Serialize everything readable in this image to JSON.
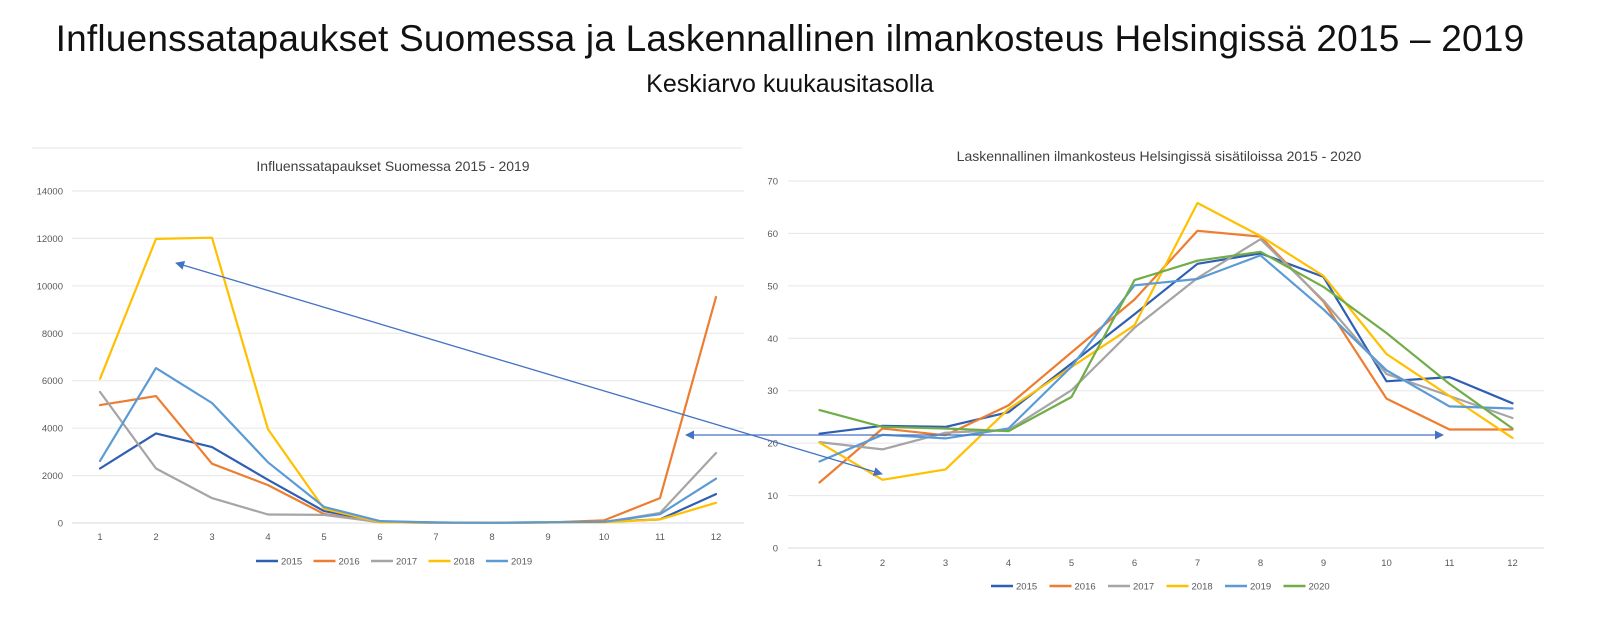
{
  "title": "Influenssatapaukset Suomessa ja Laskennallinen ilmankosteus Helsingissä 2015 – 2019",
  "subtitle": "Keskiarvo kuukausitasolla",
  "arrow_color": "#4472c4",
  "chart_data": [
    {
      "type": "line",
      "title": "Influenssatapaukset Suomessa 2015 - 2019",
      "categories": [
        "1",
        "2",
        "3",
        "4",
        "5",
        "6",
        "7",
        "8",
        "9",
        "10",
        "11",
        "12"
      ],
      "ylim": [
        0,
        14000
      ],
      "yticks": [
        "0",
        "2000",
        "4000",
        "6000",
        "8000",
        "10000",
        "12000",
        "14000"
      ],
      "grid": true,
      "legend_position": "bottom",
      "series": [
        {
          "name": "2015",
          "color": "#2f5fb3",
          "values": [
            2300,
            3780,
            3200,
            1820,
            500,
            60,
            20,
            10,
            30,
            50,
            150,
            1220
          ]
        },
        {
          "name": "2016",
          "color": "#ed7d31",
          "values": [
            4970,
            5350,
            2500,
            1600,
            380,
            30,
            10,
            10,
            20,
            110,
            1050,
            9530
          ]
        },
        {
          "name": "2017",
          "color": "#a5a5a5",
          "values": [
            5530,
            2300,
            1050,
            360,
            340,
            40,
            10,
            10,
            30,
            30,
            420,
            2950
          ]
        },
        {
          "name": "2018",
          "color": "#ffc000",
          "values": [
            6080,
            11980,
            12030,
            3950,
            600,
            40,
            10,
            10,
            20,
            30,
            150,
            850
          ]
        },
        {
          "name": "2019",
          "color": "#5b9bd5",
          "values": [
            2620,
            6530,
            5060,
            2560,
            680,
            80,
            20,
            10,
            30,
            50,
            370,
            1870
          ]
        }
      ]
    },
    {
      "type": "line",
      "title": "Laskennallinen ilmankosteus Helsingissä sisätiloissa 2015 - 2020",
      "categories": [
        "1",
        "2",
        "3",
        "4",
        "5",
        "6",
        "7",
        "8",
        "9",
        "10",
        "11",
        "12"
      ],
      "ylim": [
        0,
        70
      ],
      "yticks": [
        "0",
        "10",
        "20",
        "30",
        "40",
        "50",
        "60",
        "70"
      ],
      "grid": true,
      "legend_position": "bottom",
      "series": [
        {
          "name": "2015",
          "color": "#2f5fb3",
          "values": [
            21.8,
            23.3,
            23.1,
            25.9,
            35.2,
            44.6,
            54.2,
            56.2,
            51.7,
            31.8,
            32.6,
            27.6
          ]
        },
        {
          "name": "2016",
          "color": "#ed7d31",
          "values": [
            12.5,
            22.8,
            21.5,
            27.2,
            37.3,
            47.4,
            60.5,
            59.4,
            47.0,
            28.5,
            22.6,
            22.6
          ]
        },
        {
          "name": "2017",
          "color": "#a5a5a5",
          "values": [
            20.2,
            18.8,
            22.0,
            22.5,
            30.1,
            42.0,
            51.5,
            58.9,
            47.2,
            33.2,
            29.0,
            24.8
          ]
        },
        {
          "name": "2018",
          "color": "#ffc000",
          "values": [
            20.1,
            13.0,
            15.0,
            26.5,
            34.5,
            42.5,
            65.8,
            59.5,
            51.9,
            37.0,
            29.0,
            21.0
          ]
        },
        {
          "name": "2019",
          "color": "#5b9bd5",
          "values": [
            16.5,
            21.6,
            20.9,
            22.8,
            34.6,
            50.1,
            51.3,
            55.8,
            45.5,
            33.9,
            27.0,
            26.6
          ]
        },
        {
          "name": "2020",
          "color": "#70ad47",
          "values": [
            26.3,
            23.1,
            22.8,
            22.3,
            28.8,
            51.1,
            54.8,
            56.5,
            49.8,
            41.0,
            31.3,
            22.8
          ]
        }
      ]
    }
  ]
}
